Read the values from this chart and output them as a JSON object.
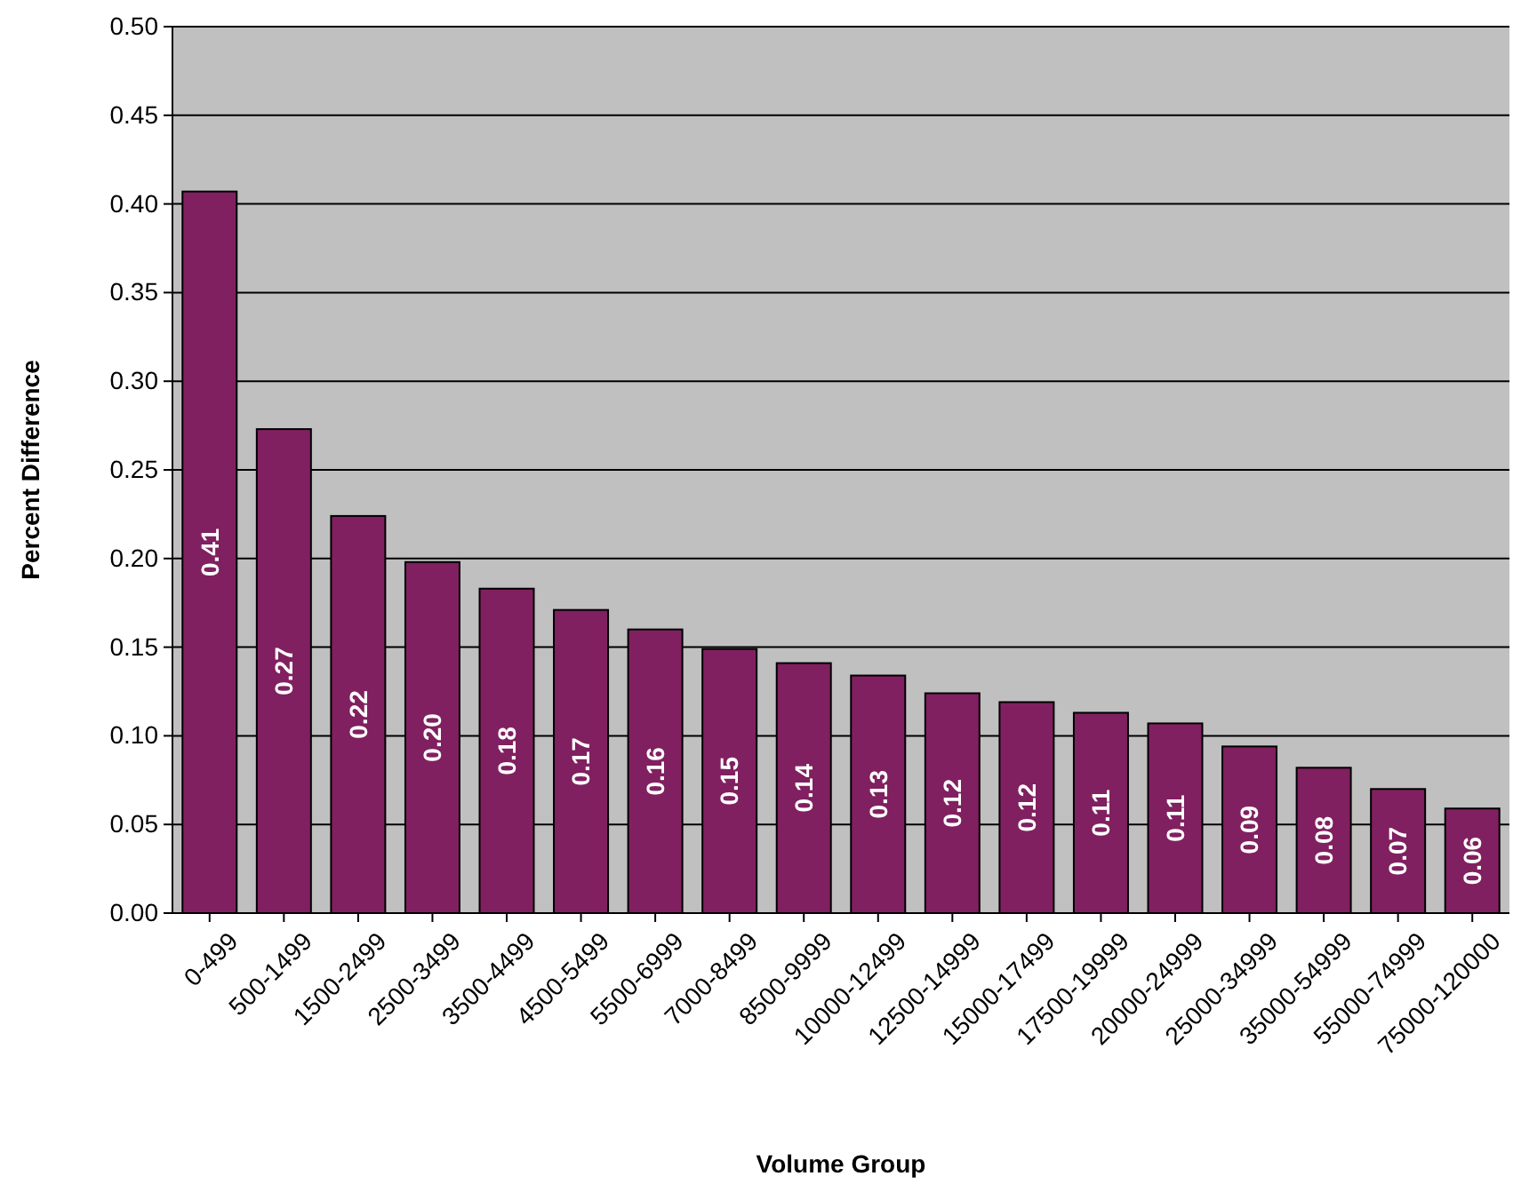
{
  "chart_data": {
    "type": "bar",
    "xlabel": "Volume Group",
    "ylabel": "Percent Difference",
    "categories": [
      "0-499",
      "500-1499",
      "1500-2499",
      "2500-3499",
      "3500-4499",
      "4500-5499",
      "5500-6999",
      "7000-8499",
      "8500-9999",
      "10000-12499",
      "12500-14999",
      "15000-17499",
      "17500-19999",
      "20000-24999",
      "25000-34999",
      "35000-54999",
      "55000-74999",
      "75000-120000"
    ],
    "values": [
      0.407,
      0.273,
      0.224,
      0.198,
      0.183,
      0.171,
      0.16,
      0.149,
      0.141,
      0.134,
      0.124,
      0.119,
      0.113,
      0.107,
      0.094,
      0.082,
      0.07,
      0.059
    ],
    "value_labels": [
      "0.41",
      "0.27",
      "0.22",
      "0.20",
      "0.18",
      "0.17",
      "0.16",
      "0.15",
      "0.14",
      "0.13",
      "0.12",
      "0.12",
      "0.11",
      "0.11",
      "0.09",
      "0.08",
      "0.07",
      "0.06"
    ],
    "color": "#802060",
    "ylim": [
      0,
      0.5
    ],
    "yticks": [
      {
        "value": 0,
        "label": "0.00"
      },
      {
        "value": 0.05,
        "label": "0.05"
      },
      {
        "value": 0.1,
        "label": "0.10"
      },
      {
        "value": 0.15,
        "label": "0.15"
      },
      {
        "value": 0.2,
        "label": "0.20"
      },
      {
        "value": 0.25,
        "label": "0.25"
      },
      {
        "value": 0.3,
        "label": "0.30"
      },
      {
        "value": 0.35,
        "label": "0.35"
      },
      {
        "value": 0.4,
        "label": "0.40"
      },
      {
        "value": 0.45,
        "label": "0.45"
      },
      {
        "value": 0.5,
        "label": "0.50"
      }
    ],
    "grid": "y"
  }
}
